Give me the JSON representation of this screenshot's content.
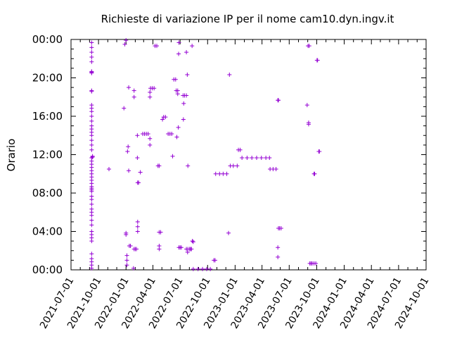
{
  "chart_data": {
    "type": "scatter",
    "title": "Richieste di variazione IP per il nome cam10.dyn.ingv.it",
    "xlabel": "",
    "ylabel": "Orario",
    "grid": false,
    "legend": "none",
    "x_range": [
      "2021-07-01",
      "2024-10-01"
    ],
    "y_range": [
      "00:00",
      "24:00"
    ],
    "x_tick_labels": [
      "2021-07-01",
      "2021-10-01",
      "2022-01-01",
      "2022-04-01",
      "2022-07-01",
      "2022-10-01",
      "2023-01-01",
      "2023-04-01",
      "2023-07-01",
      "2023-10-01",
      "2024-01-01",
      "2024-04-01",
      "2024-07-01",
      "2024-10-01"
    ],
    "y_tick_labels": [
      "00:00",
      "04:00",
      "08:00",
      "12:00",
      "16:00",
      "20:00",
      "00:00"
    ],
    "colors": {
      "series": "#9400d3",
      "axis": "#000000"
    },
    "series": [
      {
        "points": [
          [
            "2021-09-08",
            "23:40"
          ],
          [
            "2021-09-08",
            "23:10"
          ],
          [
            "2021-09-08",
            "22:40"
          ],
          [
            "2021-09-08",
            "22:10"
          ],
          [
            "2021-09-08",
            "21:40"
          ],
          [
            "2021-09-08",
            "20:40"
          ],
          [
            "2021-09-08",
            "20:35"
          ],
          [
            "2021-09-08",
            "20:30"
          ],
          [
            "2021-09-08",
            "18:40"
          ],
          [
            "2021-09-08",
            "18:35"
          ],
          [
            "2021-09-08",
            "17:10"
          ],
          [
            "2021-09-08",
            "16:50"
          ],
          [
            "2021-09-08",
            "16:30"
          ],
          [
            "2021-09-08",
            "16:00"
          ],
          [
            "2021-09-08",
            "15:30"
          ],
          [
            "2021-09-08",
            "15:00"
          ],
          [
            "2021-09-08",
            "14:40"
          ],
          [
            "2021-09-08",
            "14:20"
          ],
          [
            "2021-09-08",
            "14:00"
          ],
          [
            "2021-09-08",
            "13:30"
          ],
          [
            "2021-09-08",
            "13:00"
          ],
          [
            "2021-09-08",
            "12:30"
          ],
          [
            "2021-09-08",
            "11:40"
          ],
          [
            "2021-09-08",
            "11:20"
          ],
          [
            "2021-09-08",
            "11:00"
          ],
          [
            "2021-09-08",
            "10:40"
          ],
          [
            "2021-09-08",
            "10:20"
          ],
          [
            "2021-09-08",
            "10:00"
          ],
          [
            "2021-09-08",
            "09:40"
          ],
          [
            "2021-09-08",
            "09:20"
          ],
          [
            "2021-09-08",
            "09:00"
          ],
          [
            "2021-09-08",
            "08:40"
          ],
          [
            "2021-09-08",
            "08:30"
          ],
          [
            "2021-09-08",
            "08:20"
          ],
          [
            "2021-09-08",
            "08:10"
          ],
          [
            "2021-09-08",
            "07:40"
          ],
          [
            "2021-09-08",
            "07:20"
          ],
          [
            "2021-09-08",
            "06:50"
          ],
          [
            "2021-09-08",
            "06:20"
          ],
          [
            "2021-09-08",
            "06:00"
          ],
          [
            "2021-09-08",
            "05:40"
          ],
          [
            "2021-09-08",
            "05:10"
          ],
          [
            "2021-09-08",
            "04:40"
          ],
          [
            "2021-09-08",
            "04:00"
          ],
          [
            "2021-09-08",
            "03:40"
          ],
          [
            "2021-09-08",
            "03:20"
          ],
          [
            "2021-09-08",
            "03:00"
          ],
          [
            "2021-09-08",
            "01:40"
          ],
          [
            "2021-09-08",
            "01:10"
          ],
          [
            "2021-09-08",
            "00:50"
          ],
          [
            "2021-09-08",
            "00:30"
          ],
          [
            "2021-09-08",
            "00:10"
          ],
          [
            "2021-09-11",
            "11:50"
          ],
          [
            "2021-09-11",
            "11:45"
          ],
          [
            "2021-11-05",
            "10:30"
          ],
          [
            "2021-12-25",
            "16:50"
          ],
          [
            "2021-12-28",
            "23:30"
          ],
          [
            "2022-01-01",
            "23:55"
          ],
          [
            "2022-01-01",
            "03:50"
          ],
          [
            "2022-01-01",
            "03:40"
          ],
          [
            "2022-01-04",
            "01:30"
          ],
          [
            "2022-01-04",
            "01:00"
          ],
          [
            "2022-01-04",
            "00:30"
          ],
          [
            "2022-01-08",
            "12:50"
          ],
          [
            "2022-01-06",
            "12:20"
          ],
          [
            "2022-01-10",
            "19:00"
          ],
          [
            "2022-01-10",
            "10:20"
          ],
          [
            "2022-01-12",
            "02:30"
          ],
          [
            "2022-01-16",
            "02:30"
          ],
          [
            "2022-01-26",
            "00:10"
          ],
          [
            "2022-01-28",
            "18:40"
          ],
          [
            "2022-01-28",
            "18:00"
          ],
          [
            "2022-01-28",
            "02:10"
          ],
          [
            "2022-02-01",
            "02:10"
          ],
          [
            "2022-02-05",
            "02:10"
          ],
          [
            "2022-02-08",
            "14:00"
          ],
          [
            "2022-02-08",
            "11:40"
          ],
          [
            "2022-02-09",
            "09:05"
          ],
          [
            "2022-02-12",
            "09:05"
          ],
          [
            "2022-02-09",
            "05:00"
          ],
          [
            "2022-02-09",
            "04:30"
          ],
          [
            "2022-02-09",
            "04:00"
          ],
          [
            "2022-02-18",
            "10:10"
          ],
          [
            "2022-02-26",
            "14:10"
          ],
          [
            "2022-03-04",
            "14:10"
          ],
          [
            "2022-03-10",
            "14:10"
          ],
          [
            "2022-03-16",
            "14:10"
          ],
          [
            "2022-03-22",
            "13:40"
          ],
          [
            "2022-03-22",
            "13:00"
          ],
          [
            "2022-03-22",
            "18:30"
          ],
          [
            "2022-03-22",
            "18:00"
          ],
          [
            "2022-03-24",
            "18:55"
          ],
          [
            "2022-03-30",
            "18:55"
          ],
          [
            "2022-04-05",
            "18:55"
          ],
          [
            "2022-04-08",
            "23:20"
          ],
          [
            "2022-04-14",
            "23:20"
          ],
          [
            "2022-04-18",
            "10:50"
          ],
          [
            "2022-04-22",
            "10:50"
          ],
          [
            "2022-04-22",
            "02:30"
          ],
          [
            "2022-04-22",
            "02:10"
          ],
          [
            "2022-04-22",
            "03:55"
          ],
          [
            "2022-04-27",
            "03:55"
          ],
          [
            "2022-05-03",
            "15:40"
          ],
          [
            "2022-05-07",
            "15:55"
          ],
          [
            "2022-05-13",
            "15:55"
          ],
          [
            "2022-05-22",
            "14:10"
          ],
          [
            "2022-05-28",
            "14:10"
          ],
          [
            "2022-06-03",
            "14:10"
          ],
          [
            "2022-06-06",
            "11:50"
          ],
          [
            "2022-06-10",
            "19:50"
          ],
          [
            "2022-06-16",
            "19:50"
          ],
          [
            "2022-06-18",
            "18:40"
          ],
          [
            "2022-06-23",
            "18:40"
          ],
          [
            "2022-06-23",
            "18:20"
          ],
          [
            "2022-06-20",
            "13:50"
          ],
          [
            "2022-06-25",
            "14:50"
          ],
          [
            "2022-06-26",
            "22:30"
          ],
          [
            "2022-06-27",
            "23:40"
          ],
          [
            "2022-06-27",
            "02:20"
          ],
          [
            "2022-07-01",
            "02:20"
          ],
          [
            "2022-07-05",
            "02:20"
          ],
          [
            "2022-07-12",
            "15:40"
          ],
          [
            "2022-07-13",
            "17:20"
          ],
          [
            "2022-07-11",
            "18:10"
          ],
          [
            "2022-07-16",
            "18:10"
          ],
          [
            "2022-07-22",
            "18:10"
          ],
          [
            "2022-07-22",
            "22:40"
          ],
          [
            "2022-07-25",
            "20:20"
          ],
          [
            "2022-07-27",
            "10:50"
          ],
          [
            "2022-07-22",
            "02:10"
          ],
          [
            "2022-07-27",
            "02:10"
          ],
          [
            "2022-07-26",
            "01:50"
          ],
          [
            "2022-08-02",
            "02:10"
          ],
          [
            "2022-08-05",
            "02:10"
          ],
          [
            "2022-08-08",
            "02:10"
          ],
          [
            "2022-08-10",
            "23:20"
          ],
          [
            "2022-08-11",
            "03:00"
          ],
          [
            "2022-08-14",
            "02:55"
          ],
          [
            "2022-08-14",
            "00:05"
          ],
          [
            "2022-08-30",
            "00:05"
          ],
          [
            "2022-09-14",
            "00:05"
          ],
          [
            "2022-09-28",
            "00:05"
          ],
          [
            "2022-10-10",
            "00:05"
          ],
          [
            "2022-10-22",
            "01:00"
          ],
          [
            "2022-10-26",
            "01:00"
          ],
          [
            "2022-10-28",
            "10:00"
          ],
          [
            "2022-11-10",
            "10:00"
          ],
          [
            "2022-11-22",
            "10:00"
          ],
          [
            "2022-12-04",
            "10:00"
          ],
          [
            "2022-12-10",
            "03:50"
          ],
          [
            "2022-12-13",
            "20:20"
          ],
          [
            "2022-12-16",
            "10:50"
          ],
          [
            "2022-12-26",
            "10:50"
          ],
          [
            "2023-01-08",
            "10:50"
          ],
          [
            "2023-01-12",
            "12:30"
          ],
          [
            "2023-01-18",
            "12:30"
          ],
          [
            "2023-01-24",
            "11:40"
          ],
          [
            "2023-02-10",
            "11:40"
          ],
          [
            "2023-02-26",
            "11:40"
          ],
          [
            "2023-03-14",
            "11:40"
          ],
          [
            "2023-03-30",
            "11:40"
          ],
          [
            "2023-04-14",
            "11:40"
          ],
          [
            "2023-04-26",
            "11:40"
          ],
          [
            "2023-04-28",
            "10:30"
          ],
          [
            "2023-05-08",
            "10:30"
          ],
          [
            "2023-05-18",
            "10:30"
          ],
          [
            "2023-05-24",
            "17:40"
          ],
          [
            "2023-05-26",
            "17:40"
          ],
          [
            "2023-05-26",
            "04:20"
          ],
          [
            "2023-05-30",
            "04:20"
          ],
          [
            "2023-06-04",
            "04:20"
          ],
          [
            "2023-05-24",
            "02:20"
          ],
          [
            "2023-05-24",
            "01:20"
          ],
          [
            "2023-09-02",
            "23:20"
          ],
          [
            "2023-09-06",
            "23:20"
          ],
          [
            "2023-08-30",
            "17:10"
          ],
          [
            "2023-09-04",
            "15:10"
          ],
          [
            "2023-09-04",
            "15:20"
          ],
          [
            "2023-09-08",
            "00:40"
          ],
          [
            "2023-09-12",
            "00:40"
          ],
          [
            "2023-09-16",
            "00:40"
          ],
          [
            "2023-09-22",
            "00:40"
          ],
          [
            "2023-09-28",
            "00:40"
          ],
          [
            "2023-09-22",
            "10:00"
          ],
          [
            "2023-09-24",
            "10:00"
          ],
          [
            "2023-10-02",
            "21:50"
          ],
          [
            "2023-10-04",
            "21:50"
          ],
          [
            "2023-10-08",
            "12:20"
          ],
          [
            "2023-10-10",
            "12:20"
          ]
        ]
      }
    ]
  }
}
